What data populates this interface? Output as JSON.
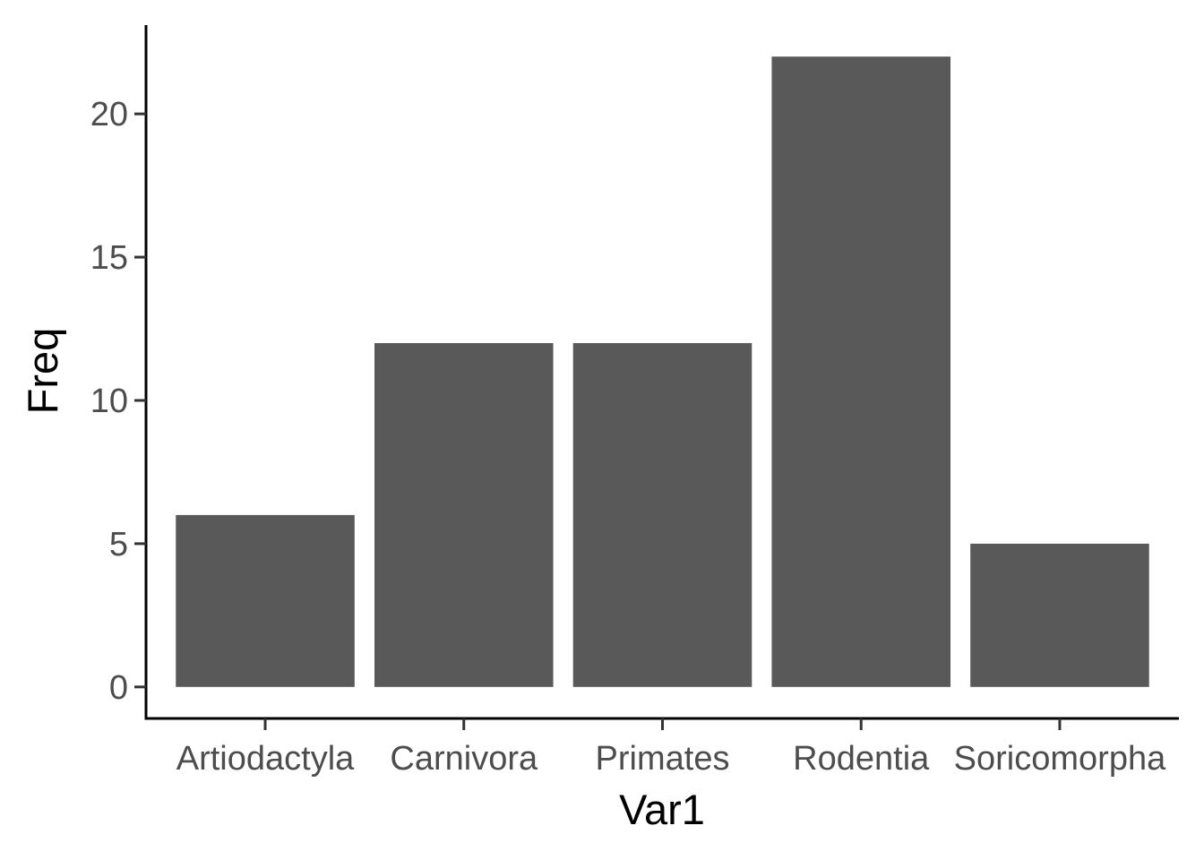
{
  "chart_data": {
    "type": "bar",
    "categories": [
      "Artiodactyla",
      "Carnivora",
      "Primates",
      "Rodentia",
      "Soricomorpha"
    ],
    "values": [
      6,
      12,
      12,
      22,
      5
    ],
    "xlabel": "Var1",
    "ylabel": "Freq",
    "ylim": [
      -1.1,
      23.1
    ],
    "yticks": [
      0,
      5,
      10,
      15,
      20
    ],
    "grid": false,
    "legend": "none",
    "bar_color": "#595959",
    "axis_color": "#000000"
  }
}
